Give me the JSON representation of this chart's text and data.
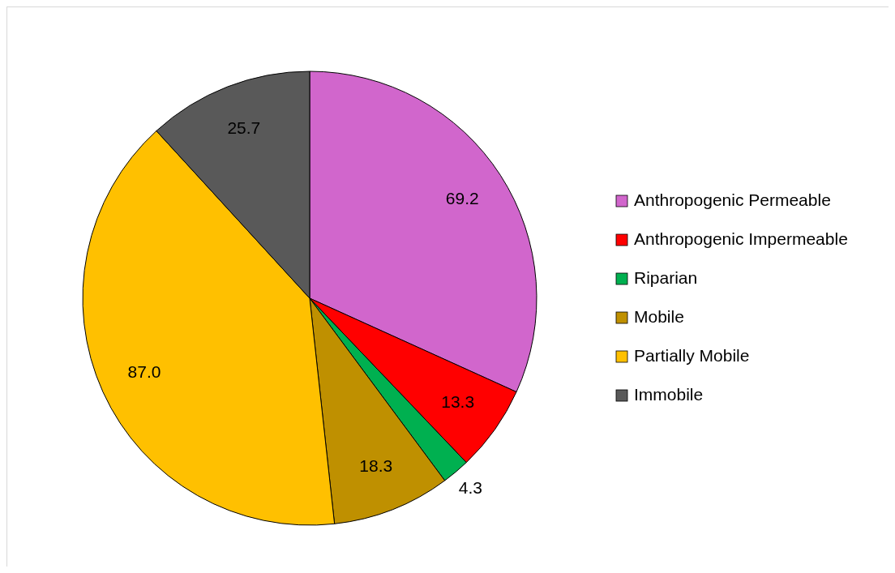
{
  "chart_data": {
    "type": "pie",
    "categories": [
      "Anthropogenic Permeable",
      "Anthropogenic Impermeable",
      "Riparian",
      "Mobile",
      "Partially Mobile",
      "Immobile"
    ],
    "values": [
      69.2,
      13.3,
      4.3,
      18.3,
      87.0,
      25.7
    ],
    "value_labels": [
      "69.2",
      "13.3",
      "4.3",
      "18.3",
      "87.0",
      "25.7"
    ],
    "colors": [
      "#d166cc",
      "#ff0000",
      "#00b050",
      "#bf9000",
      "#ffc000",
      "#595959"
    ],
    "legend": "right"
  }
}
